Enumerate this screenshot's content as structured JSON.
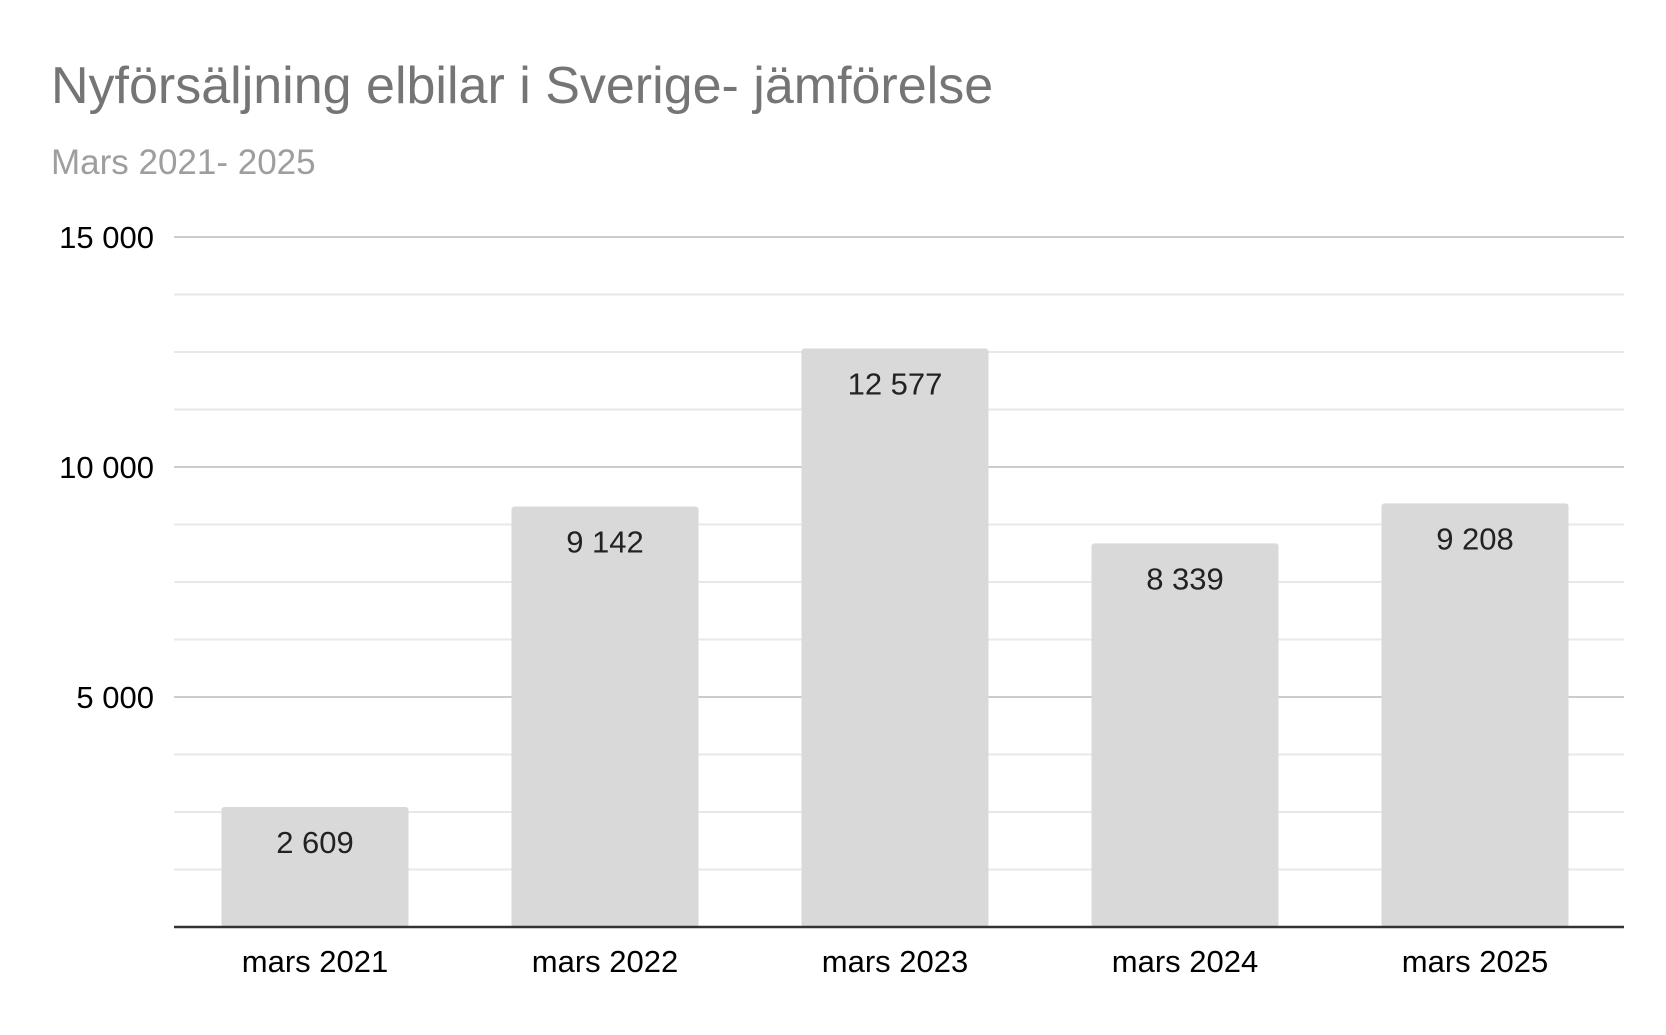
{
  "chart_data": {
    "type": "bar",
    "title": "Nyförsäljning elbilar i Sverige- jämförelse",
    "subtitle": "Mars 2021- 2025",
    "categories": [
      "mars 2021",
      "mars 2022",
      "mars 2023",
      "mars 2024",
      "mars 2025"
    ],
    "values": [
      2609,
      9142,
      12577,
      8339,
      9208
    ],
    "data_labels": [
      "2 609",
      "9 142",
      "12 577",
      "8 339",
      "9 208"
    ],
    "xlabel": "",
    "ylabel": "",
    "ylim": [
      0,
      15000
    ],
    "y_ticks": [
      5000,
      10000,
      15000
    ],
    "y_tick_labels": [
      "5 000",
      "10 000",
      "15 000"
    ],
    "minor_gridlines_per_interval": 3,
    "grid": true,
    "legend": "none",
    "colors": {
      "bar": "#d9d9d9",
      "title": "#757575",
      "subtitle": "#9e9e9e",
      "major_grid": "#cccccc",
      "minor_grid": "#e8e8e8",
      "axis": "#333333",
      "tick_label": "#000000",
      "data_label": "#222222"
    }
  }
}
